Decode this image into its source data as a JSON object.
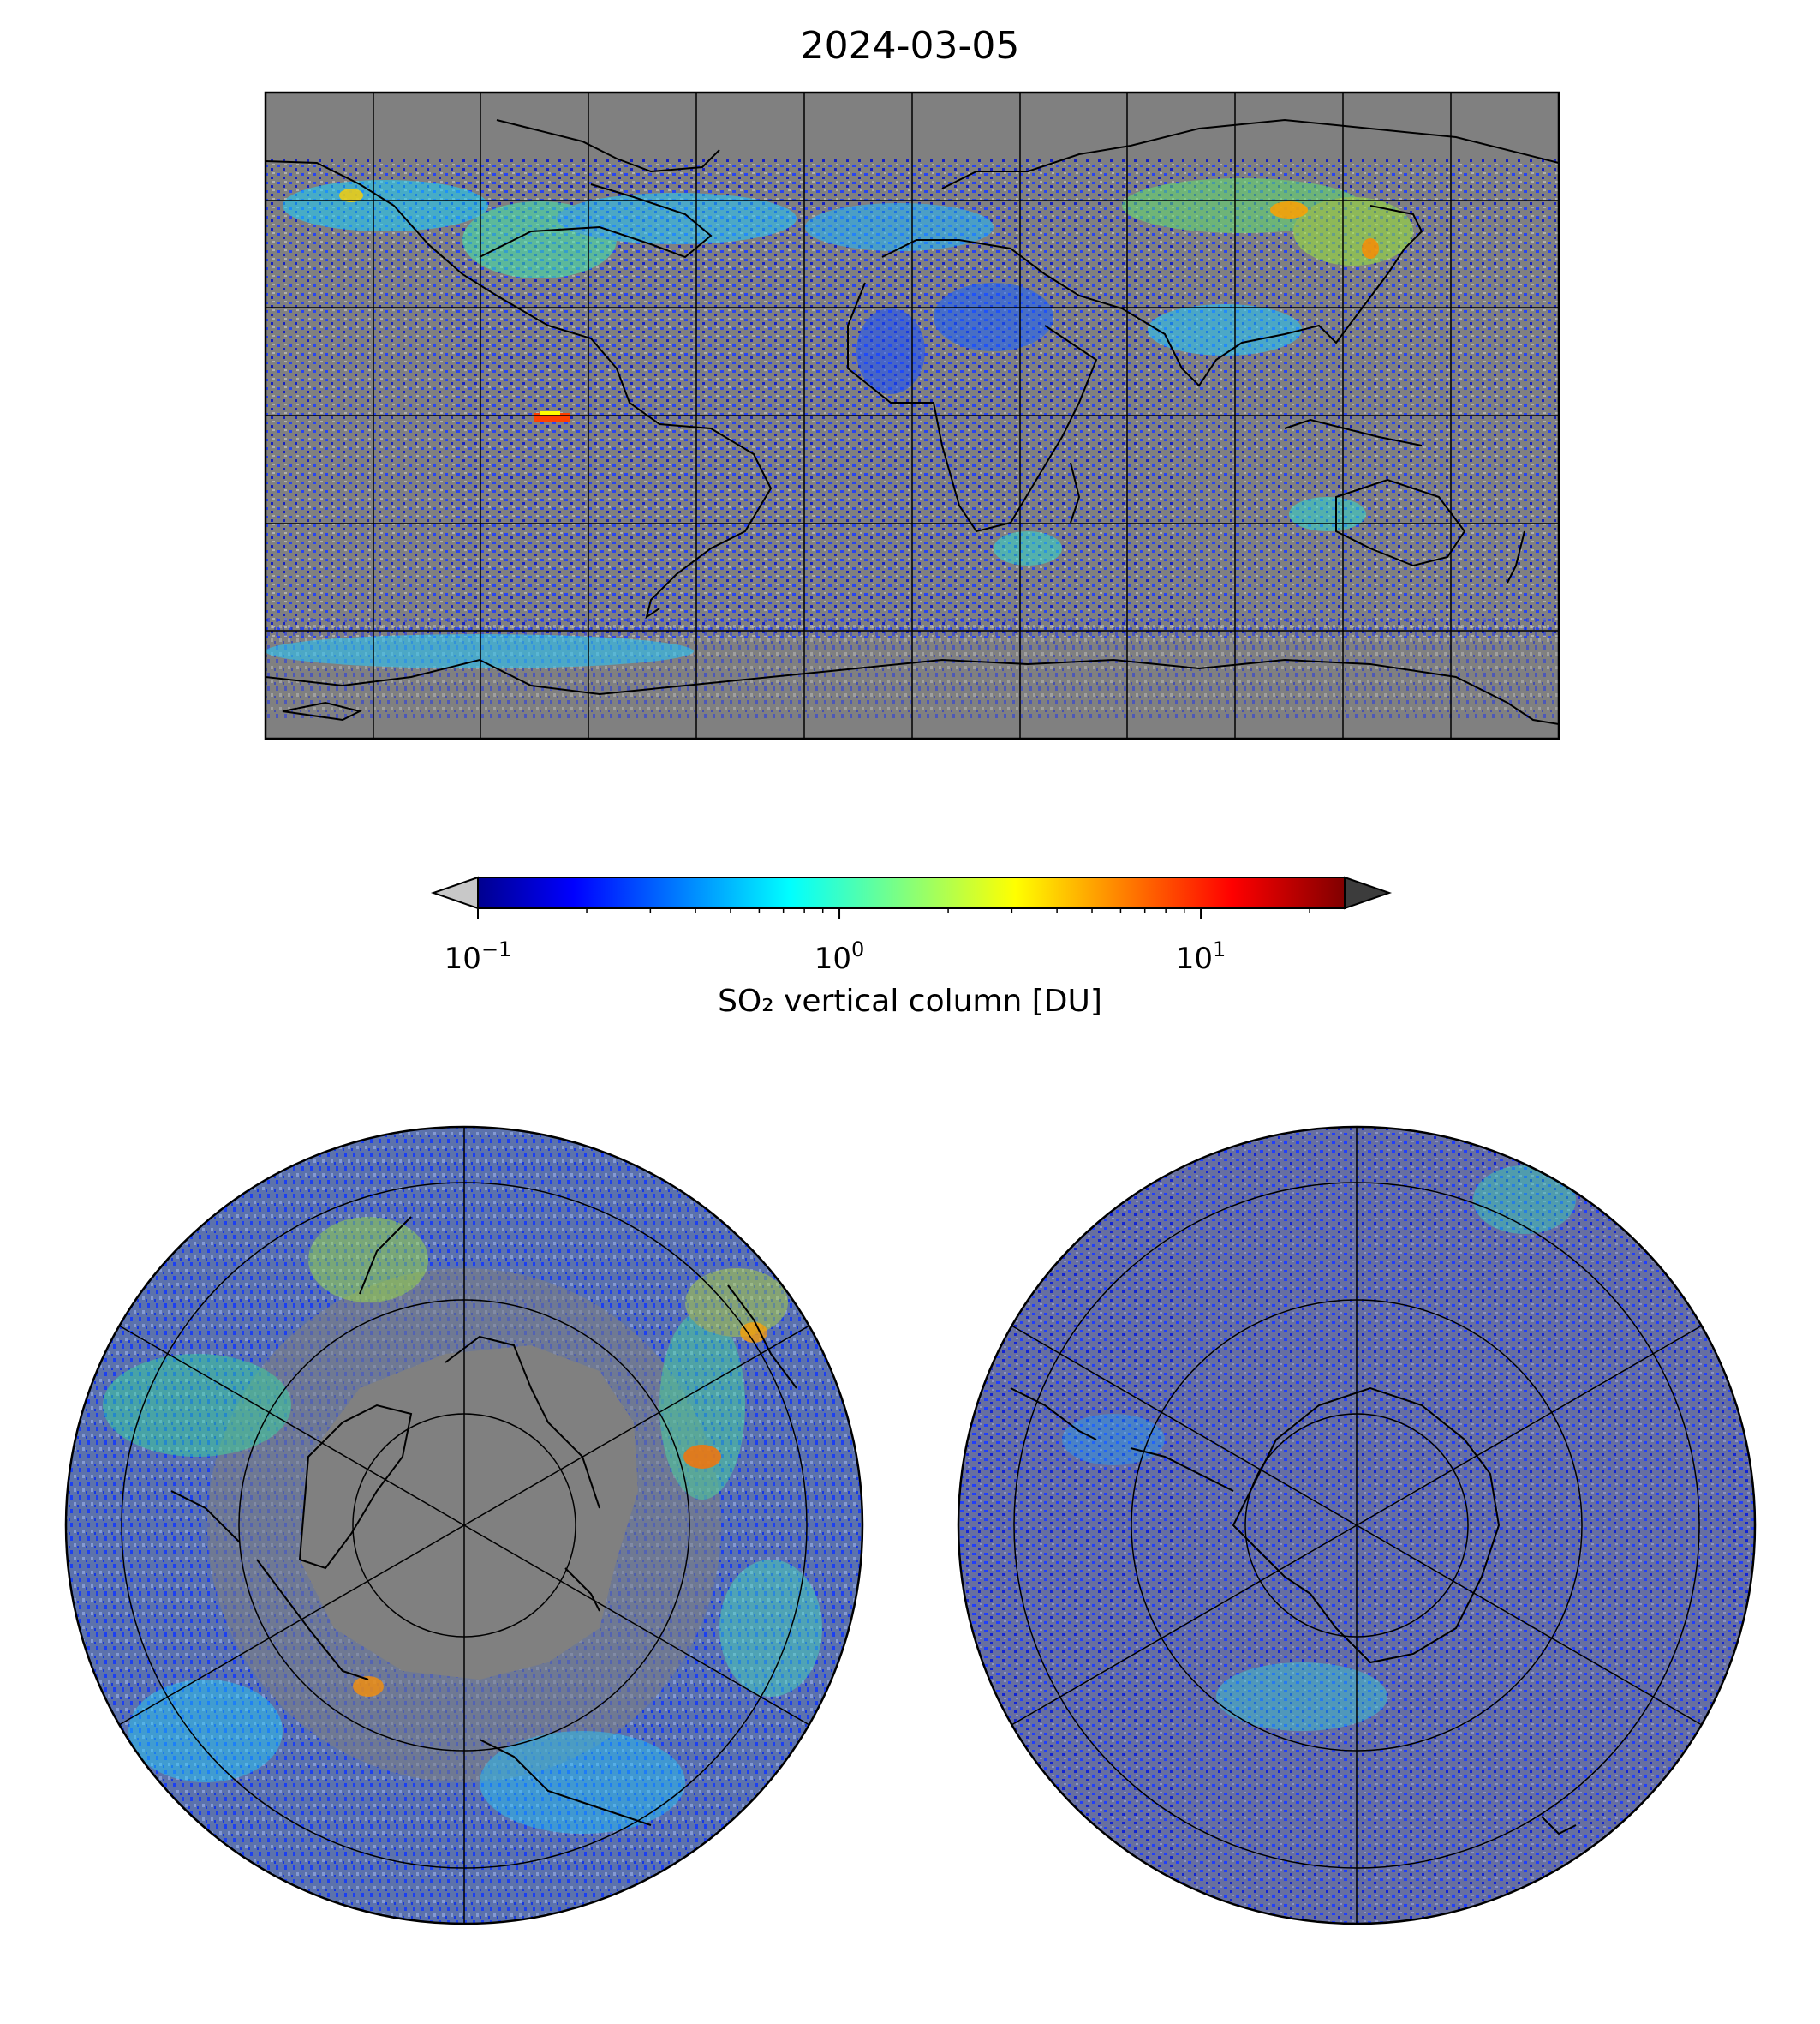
{
  "title": "2024-03-05",
  "colorbar": {
    "label": "SO₂ vertical column [DU]",
    "scale": "log",
    "range": [
      0.1,
      25
    ],
    "extend": "both",
    "colormap": "jet",
    "under_color": "#c8c8c8",
    "over_color": "#3c3c3c",
    "ticks": [
      {
        "base": "10",
        "exp": "−1",
        "value": 0.1
      },
      {
        "base": "10",
        "exp": "0",
        "value": 1
      },
      {
        "base": "10",
        "exp": "1",
        "value": 10
      }
    ]
  },
  "maps": {
    "global": {
      "projection": "plate-carree",
      "background": "#808080",
      "gridline_spacing_deg": 30
    },
    "north_polar": {
      "projection": "north-polar-stereographic",
      "background": "#808080"
    },
    "south_polar": {
      "projection": "south-polar-stereographic",
      "background": "#808080"
    }
  }
}
